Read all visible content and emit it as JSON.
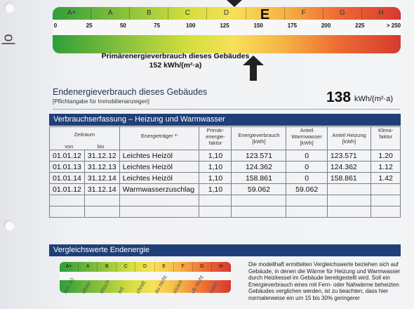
{
  "top_scale": {
    "classes": [
      "A+",
      "A",
      "B",
      "C",
      "D",
      "E",
      "F",
      "G",
      "H"
    ],
    "highlighted": "E",
    "ticks": [
      "0",
      "25",
      "50",
      "75",
      "100",
      "125",
      "150",
      "175",
      "200",
      "225",
      "> 250"
    ]
  },
  "primary": {
    "label": "Primärenergieverbrauch dieses Gebäudes",
    "value": "152 kWh/(m²·a)"
  },
  "endenergy": {
    "title": "Endenergieverbrauch dieses Gebäudes",
    "subtitle": "[Pflichtangabe für Immobilienanzeigen]",
    "value": "138",
    "unit": "kWh/(m²·a)"
  },
  "section1": {
    "title": "Verbrauchserfassung – Heizung und Warmwasser"
  },
  "table": {
    "headers": {
      "zeitraum": "Zeitraum",
      "von": "von",
      "bis": "bis",
      "energietraeger": "Energieträger ³⁾",
      "faktor": "Primär-energie-faktor",
      "verbrauch": "Energieverbrauch [kWh]",
      "warmwasser": "Anteil Warmwasser [kWh]",
      "heizung": "Anteil Heizung [kWh]",
      "klima": "Klima-faktor"
    },
    "rows": [
      {
        "von": "01.01.12",
        "bis": "31.12.12",
        "traeger": "Leichtes Heizöl",
        "faktor": "1,10",
        "verbrauch": "123.571",
        "ww": "0",
        "heiz": "123.571",
        "klima": "1.20"
      },
      {
        "von": "01.01.13",
        "bis": "31.12.13",
        "traeger": "Leichtes Heizöl",
        "faktor": "1,10",
        "verbrauch": "124.362",
        "ww": "0",
        "heiz": "124.362",
        "klima": "1.12"
      },
      {
        "von": "01.01.14",
        "bis": "31.12.14",
        "traeger": "Leichtes Heizöl",
        "faktor": "1,10",
        "verbrauch": "158.861",
        "ww": "0",
        "heiz": "158.861",
        "klima": "1.42"
      },
      {
        "von": "01.01.12",
        "bis": "31.12.14",
        "traeger": "Warmwasserzuschlag",
        "faktor": "1,10",
        "verbrauch": "59.062",
        "ww": "59.062",
        "heiz": "",
        "klima": ""
      }
    ]
  },
  "section2": {
    "title": "Vergleichswerte Endenergie"
  },
  "bottom_scale": {
    "classes": [
      "A+",
      "A",
      "B",
      "C",
      "D",
      "E",
      "F",
      "G",
      "H"
    ],
    "rotated_labels": [
      "aus 40",
      "ubau",
      "etisch",
      "ert",
      "chnitt",
      "au nicht",
      "sisiert",
      "ub nicht",
      "isiert"
    ]
  },
  "comparison_text": "Die modellhaft ermittelten Vergleichswerte beziehen sich auf Gebäude, in denen die Wärme für Heizung und Warmwasser durch Heizkessel im Gebäude bereitgestellt wird. Soll ein Energieverbrauch eines mit Fern- oder Nahwärme beheizten Gebäudes verglichen werden, ist zu beachten, dass hier normalerweise ein um 15 bis 30% geringerer"
}
